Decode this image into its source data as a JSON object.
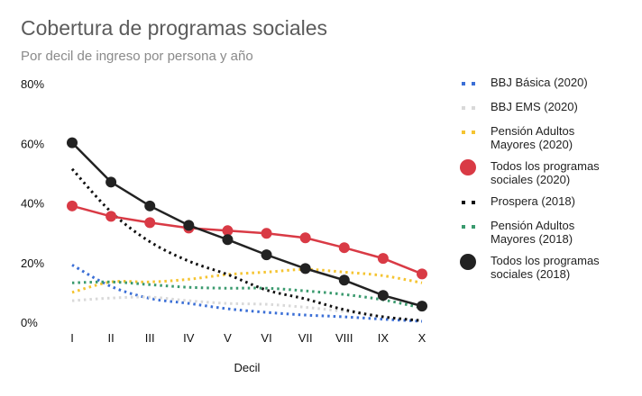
{
  "header": {
    "title": "Cobertura de programas sociales",
    "subtitle": "Por decil de ingreso por persona y año"
  },
  "chart_data": {
    "type": "line",
    "title": "Cobertura de programas sociales",
    "subtitle": "Por decil de ingreso por persona y año",
    "xlabel": "Decil",
    "ylabel": "",
    "categories": [
      "I",
      "II",
      "III",
      "IV",
      "V",
      "VI",
      "VII",
      "VIII",
      "IX",
      "X"
    ],
    "ylim": [
      0,
      80
    ],
    "yticks": [
      "0%",
      "20%",
      "40%",
      "60%",
      "80%"
    ],
    "ytick_values": [
      0,
      20,
      40,
      60,
      80
    ],
    "grid": false,
    "legend_position": "right",
    "series": [
      {
        "name": "BBJ Básica (2020)",
        "color": "#3b6fd6",
        "style": "dotted",
        "values": [
          19.2,
          12,
          8,
          6.3,
          4.5,
          3.3,
          2.4,
          1.8,
          1,
          0.3
        ]
      },
      {
        "name": "BBJ EMS (2020)",
        "color": "#d9d9d9",
        "style": "dotted",
        "values": [
          7.2,
          8.1,
          8.4,
          7.2,
          6.3,
          6,
          5,
          3.6,
          1.8,
          0.5
        ]
      },
      {
        "name": "Pensión Adultos Mayores (2020)",
        "color": "#f5c431",
        "style": "dotted",
        "values": [
          10,
          13.5,
          13.5,
          14.4,
          16,
          16.8,
          17.7,
          16.8,
          15.6,
          13.2
        ]
      },
      {
        "name": "Todos los programas sociales (2020)",
        "color": "#d93a45",
        "style": "solid-markers",
        "values": [
          39,
          35.5,
          33.4,
          31.6,
          30.7,
          29.8,
          28.3,
          25,
          21.4,
          16.2
        ]
      },
      {
        "name": "Prospera (2018)",
        "color": "#111111",
        "style": "dotted",
        "values": [
          51.4,
          37,
          27,
          20.5,
          16,
          10.8,
          7.8,
          4.2,
          1.8,
          0.5
        ]
      },
      {
        "name": "Pensión Adultos Mayores (2018)",
        "color": "#3a9a6e",
        "style": "dotted",
        "values": [
          13.2,
          13.5,
          12.6,
          11.7,
          11.4,
          11.4,
          10.5,
          9.3,
          7.5,
          4.8
        ]
      },
      {
        "name": "Todos los programas sociales (2018)",
        "color": "#222222",
        "style": "solid-markers",
        "values": [
          60.2,
          47,
          39,
          32.5,
          27.7,
          22.6,
          18,
          14.1,
          9,
          5.4
        ]
      }
    ]
  },
  "legend": {
    "items": [
      {
        "line1": "BBJ Básica (2020)",
        "line2": ""
      },
      {
        "line1": "BBJ EMS (2020)",
        "line2": ""
      },
      {
        "line1": "Pensión Adultos",
        "line2": "Mayores (2020)"
      },
      {
        "line1": "Todos los programas",
        "line2": "sociales (2020)"
      },
      {
        "line1": "Prospera (2018)",
        "line2": ""
      },
      {
        "line1": "Pensión Adultos",
        "line2": "Mayores (2018)"
      },
      {
        "line1": "Todos los programas",
        "line2": "sociales (2018)"
      }
    ]
  }
}
